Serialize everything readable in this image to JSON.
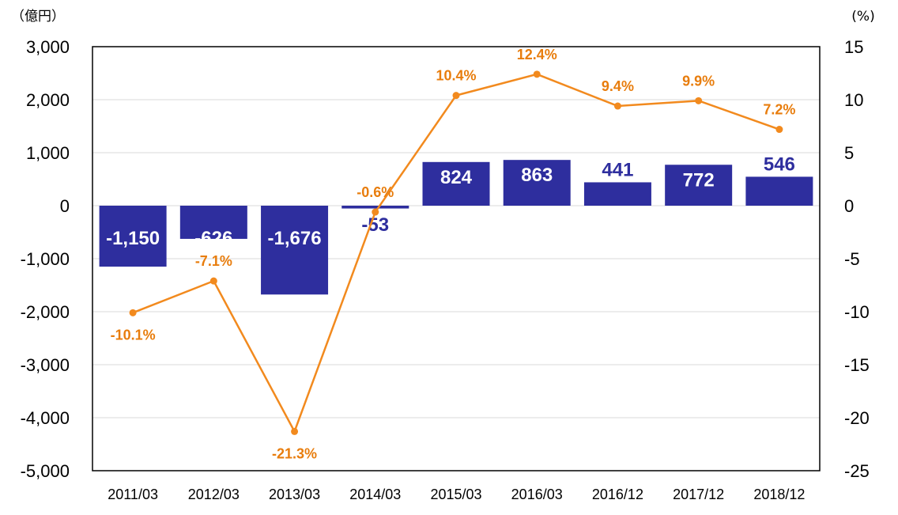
{
  "chart_data": {
    "type": "bar",
    "categories": [
      "2011/03",
      "2012/03",
      "2013/03",
      "2014/03",
      "2015/03",
      "2016/03",
      "2016/12",
      "2017/12",
      "2018/12"
    ],
    "series": [
      {
        "name": "bars",
        "axis": "left",
        "type": "bar",
        "values": [
          -1150,
          -626,
          -1676,
          -53,
          824,
          863,
          441,
          772,
          546
        ],
        "labels": [
          "-1,150",
          "-626",
          "-1,676",
          "-53",
          "824",
          "863",
          "441",
          "772",
          "546"
        ]
      },
      {
        "name": "line",
        "axis": "right",
        "type": "line",
        "values": [
          -10.1,
          -7.1,
          -21.3,
          -0.6,
          10.4,
          12.4,
          9.4,
          9.9,
          7.2
        ],
        "labels": [
          "-10.1%",
          "-7.1%",
          "-21.3%",
          "-0.6%",
          "10.4%",
          "12.4%",
          "9.4%",
          "9.9%",
          "7.2%"
        ]
      }
    ],
    "left_axis": {
      "unit": "（億円）",
      "range": [
        -5000,
        3000
      ],
      "ticks": [
        3000,
        2000,
        1000,
        0,
        -1000,
        -2000,
        -3000,
        -4000,
        -5000
      ],
      "tick_labels": [
        "3,000",
        "2,000",
        "1,000",
        "0",
        "-1,000",
        "-2,000",
        "-3,000",
        "-4,000",
        "-5,000"
      ]
    },
    "right_axis": {
      "unit": "(%)",
      "range": [
        -25,
        15
      ],
      "ticks": [
        15,
        10,
        5,
        0,
        -5,
        -10,
        -15,
        -20,
        -25
      ],
      "tick_labels": [
        "15",
        "10",
        "5",
        "0",
        "-5",
        "-10",
        "-15",
        "-20",
        "-25"
      ]
    },
    "grid": true,
    "colors": {
      "bar": "#2E2E9E",
      "line": "#F28A1E",
      "line_label": "#E87D0D",
      "grid": "#D9D9D9",
      "frame": "#000000"
    }
  }
}
